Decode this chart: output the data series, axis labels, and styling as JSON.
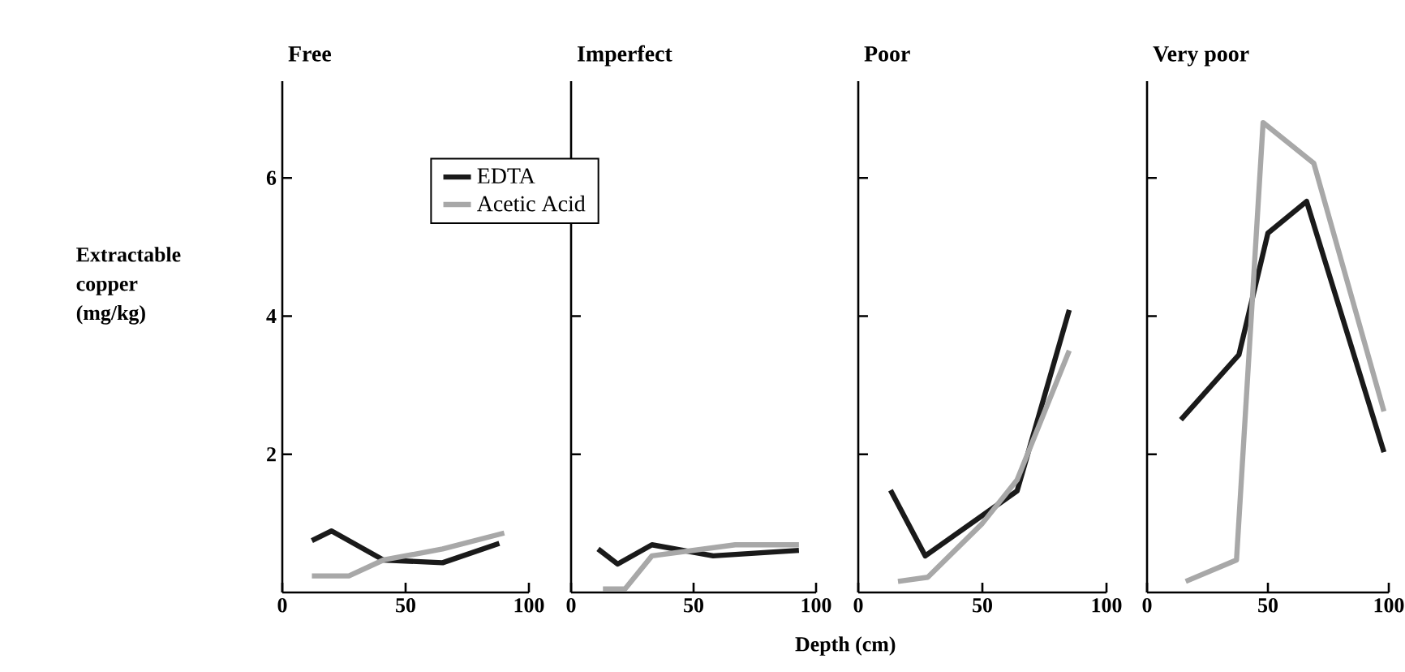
{
  "chart_data": [
    {
      "type": "line",
      "title": "Free",
      "ylabel": "Extractable copper (mg/kg)",
      "legend": "top right",
      "xlim": [
        0,
        100
      ],
      "ylim": [
        0,
        7.4
      ],
      "xticks": [
        0,
        50,
        100
      ],
      "yticks": [
        2,
        4,
        6
      ],
      "series": [
        {
          "name": "EDTA",
          "color": "#1a1a1a",
          "x": [
            12,
            20,
            41,
            65,
            88
          ],
          "values": [
            0.75,
            0.89,
            0.47,
            0.43,
            0.71
          ]
        },
        {
          "name": "Acetic Acid",
          "color": "#a8a8a8",
          "x": [
            12,
            27,
            41,
            65,
            90
          ],
          "values": [
            0.24,
            0.24,
            0.47,
            0.63,
            0.86
          ]
        }
      ]
    },
    {
      "type": "line",
      "title": "Imperfect",
      "xlabel": "Depth (cm)",
      "tick_labels": "x",
      "xlim": [
        0,
        100
      ],
      "ylim": [
        0,
        7.4
      ],
      "xticks": [
        0,
        50,
        100
      ],
      "yticks": [
        2,
        4,
        6
      ],
      "series": [
        {
          "color": "#1a1a1a",
          "x": [
            11,
            19,
            33,
            58,
            93
          ],
          "values": [
            0.63,
            0.41,
            0.69,
            0.53,
            0.61
          ]
        },
        {
          "color": "#a8a8a8",
          "x": [
            13,
            22,
            33,
            67,
            93
          ],
          "values": [
            0.05,
            0.05,
            0.53,
            0.69,
            0.69
          ]
        }
      ]
    },
    {
      "type": "line",
      "title": "Poor",
      "tick_labels": "x",
      "xlim": [
        0,
        100
      ],
      "ylim": [
        0,
        7.4
      ],
      "xticks": [
        0,
        50,
        100
      ],
      "yticks": [
        2,
        4,
        6
      ],
      "series": [
        {
          "color": "#1a1a1a",
          "x": [
            13,
            27,
            64,
            85
          ],
          "values": [
            1.48,
            0.53,
            1.47,
            4.09
          ]
        },
        {
          "color": "#a8a8a8",
          "x": [
            16,
            28,
            50,
            64,
            85
          ],
          "values": [
            0.16,
            0.22,
            1.0,
            1.63,
            3.5
          ]
        }
      ]
    },
    {
      "type": "line",
      "title": "Very poor",
      "tick_labels": "x",
      "xlim": [
        0,
        100
      ],
      "ylim": [
        0,
        7.4
      ],
      "xticks": [
        0,
        50,
        100
      ],
      "yticks": [
        2,
        4,
        6
      ],
      "series": [
        {
          "color": "#1a1a1a",
          "x": [
            14,
            38,
            50,
            66,
            98
          ],
          "values": [
            2.5,
            3.44,
            5.2,
            5.66,
            2.03
          ]
        },
        {
          "color": "#a8a8a8",
          "x": [
            16,
            37,
            48,
            69,
            98
          ],
          "values": [
            0.16,
            0.47,
            6.8,
            6.21,
            2.62
          ]
        }
      ]
    }
  ]
}
